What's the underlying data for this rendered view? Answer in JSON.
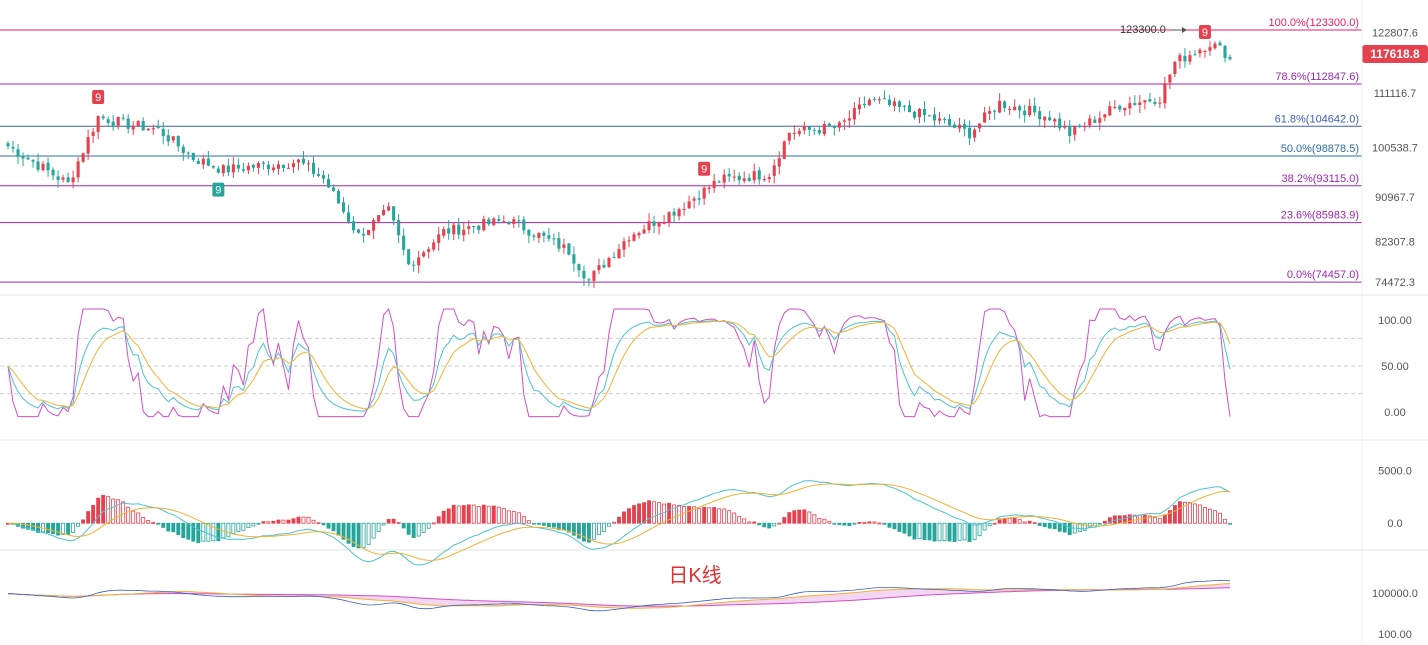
{
  "colors": {
    "up": "#e5424f",
    "down": "#26a69a",
    "k_line": "#4dc3d1",
    "d_line": "#f2b233",
    "j_line": "#d24fc9",
    "fib_main": "#9c27b0",
    "fib_top": "#e91e63",
    "fib_618": "#3b5fb6",
    "fib_500": "#2f6ea3",
    "price_tag": "#e5424f",
    "signal_up": "#e5424f",
    "signal_down": "#26a69a",
    "caption": "#e0302f"
  },
  "caption": "日K线",
  "price_panel": {
    "axis_labels": [
      "122807.6",
      "111116.7",
      "100538.7",
      "90967.7",
      "82307.8",
      "74472.3"
    ],
    "current_price": "117618.8",
    "high_annotation": "123300.0",
    "fib_levels": [
      {
        "label": "100.0%(123300.0)",
        "value": 123300.0
      },
      {
        "label": "78.6%(112847.6)",
        "value": 112847.6
      },
      {
        "label": "61.8%(104642.0)",
        "value": 104642.0
      },
      {
        "label": "50.0%(98878.5)",
        "value": 98878.5
      },
      {
        "label": "38.2%(93115.0)",
        "value": 93115.0
      },
      {
        "label": "23.6%(85983.9)",
        "value": 85983.9
      },
      {
        "label": "0.0%(74457.0)",
        "value": 74457.0
      }
    ],
    "signals": [
      {
        "label": "9",
        "type": "up",
        "candle": 18
      },
      {
        "label": "9",
        "type": "down",
        "candle": 42
      },
      {
        "label": "9",
        "type": "up",
        "candle": 139
      },
      {
        "label": "9",
        "type": "up",
        "candle": 239
      }
    ]
  },
  "kdj_panel": {
    "axis_labels": [
      "100.00",
      "50.00",
      "0.00"
    ]
  },
  "macd_panel": {
    "axis_labels": [
      "5000.0",
      "0.0"
    ]
  },
  "volume_panel": {
    "axis_labels": [
      "100000.0",
      "100.00"
    ]
  },
  "chart_data": {
    "type": "candlestick",
    "title": "日K线",
    "candle_count": 245,
    "price_range": [
      74472.3,
      123300.0
    ],
    "close_anchors": [
      [
        0,
        100800
      ],
      [
        12,
        93500
      ],
      [
        18,
        106500
      ],
      [
        24,
        105000
      ],
      [
        30,
        104000
      ],
      [
        37,
        98500
      ],
      [
        43,
        96200
      ],
      [
        58,
        97800
      ],
      [
        63,
        94500
      ],
      [
        70,
        83500
      ],
      [
        76,
        88200
      ],
      [
        80,
        77800
      ],
      [
        87,
        84200
      ],
      [
        100,
        86500
      ],
      [
        112,
        80500
      ],
      [
        116,
        74800
      ],
      [
        124,
        83500
      ],
      [
        134,
        88800
      ],
      [
        142,
        94200
      ],
      [
        152,
        95500
      ],
      [
        156,
        103500
      ],
      [
        166,
        104500
      ],
      [
        172,
        109800
      ],
      [
        184,
        106400
      ],
      [
        192,
        103300
      ],
      [
        198,
        109200
      ],
      [
        208,
        106500
      ],
      [
        212,
        103200
      ],
      [
        222,
        108800
      ],
      [
        230,
        110200
      ],
      [
        233,
        117000
      ],
      [
        240,
        120800
      ],
      [
        245,
        117618.8
      ]
    ],
    "kdj": {
      "ylim": [
        0,
        100
      ],
      "reference_lines": [
        80,
        50,
        20
      ]
    },
    "macd": {
      "ylim": [
        -3000,
        5500
      ]
    }
  }
}
